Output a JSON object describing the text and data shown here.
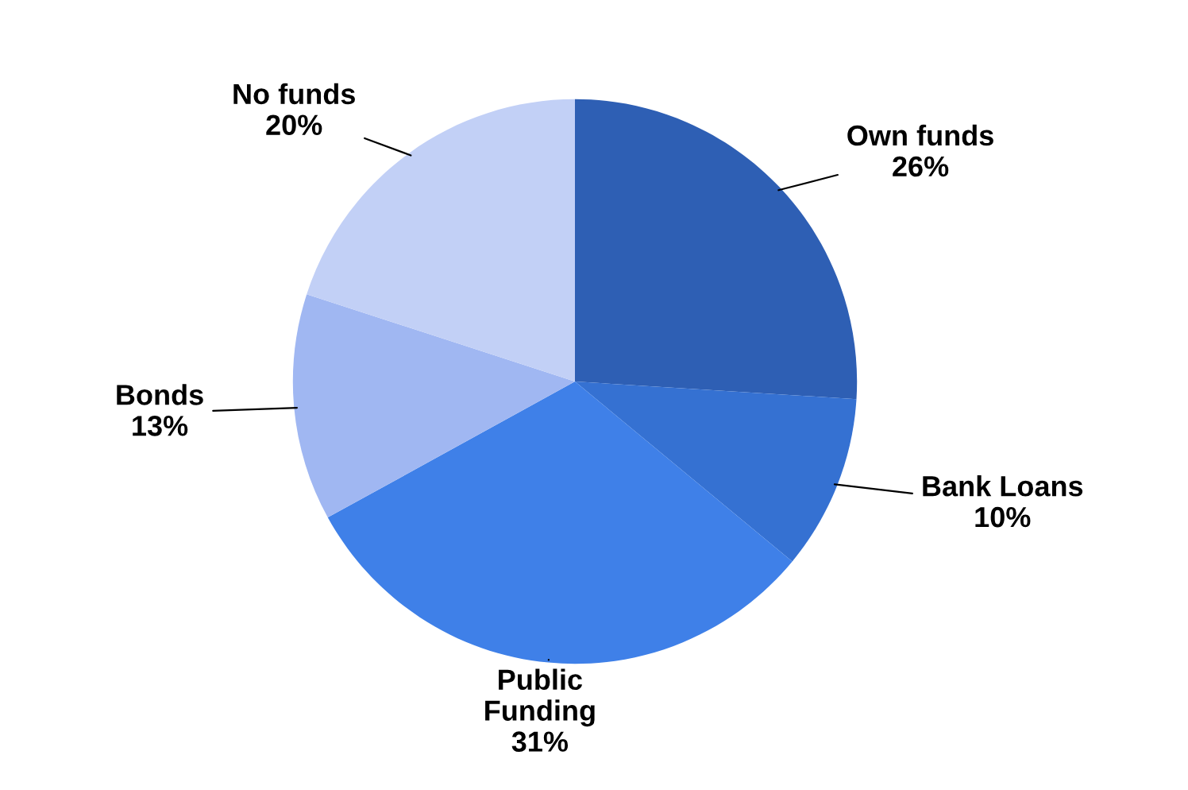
{
  "chart_data": {
    "type": "pie",
    "categories": [
      "Own funds",
      "Bank Loans",
      "Public Funding",
      "Bonds",
      "No funds"
    ],
    "values": [
      26,
      10,
      31,
      13,
      20
    ],
    "colors": [
      "#2e5fb4",
      "#3571d2",
      "#3f80e8",
      "#a0b7f2",
      "#c2d0f6"
    ],
    "value_labels": [
      "26%",
      "10%",
      "31%",
      "13%",
      "20%"
    ],
    "legend": false
  }
}
